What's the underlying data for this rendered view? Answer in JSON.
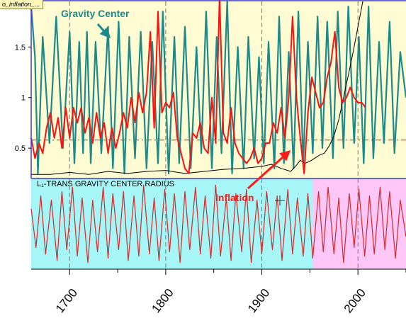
{
  "file_tab": "o_inflation_...",
  "colors": {
    "upper_bg": "#fffcd4",
    "lower_bg_left": "#a6f5f7",
    "lower_bg_right": "#ffc7f7",
    "gravity": "#1b8a8a",
    "inflation": "#ff1010",
    "radius_line": "#d22a2a",
    "black_curve": "#000000",
    "grid": "#7a7a7a",
    "mean_line": "#cc2222",
    "label_teal": "#1b8a8a",
    "label_red": "#ff1a1a"
  },
  "chart_data": [
    {
      "type": "line",
      "panel": "upper",
      "xlim": [
        1660,
        2050
      ],
      "ylim": [
        0.2,
        1.95
      ],
      "y_ticks": [
        "0.5",
        "1",
        "1.5"
      ],
      "y_tick_values": [
        0.5,
        1,
        1.5
      ],
      "grid_x": [
        1700,
        1800,
        1900,
        2000
      ],
      "mean_line_y": 0.58,
      "labels": {
        "gravity_center": "Gravity Center",
        "inflation": "Inflation"
      },
      "series": [
        {
          "name": "Gravity Center",
          "x": [
            1660,
            1664,
            1667,
            1672,
            1679,
            1686,
            1693,
            1700,
            1705,
            1710,
            1714,
            1718,
            1722,
            1727,
            1733,
            1740,
            1745,
            1751,
            1757,
            1762,
            1768,
            1774,
            1780,
            1786,
            1792,
            1797,
            1803,
            1809,
            1814,
            1820,
            1826,
            1832,
            1837,
            1842,
            1848,
            1853,
            1858,
            1864,
            1869,
            1875,
            1881,
            1886,
            1892,
            1897,
            1902,
            1907,
            1913,
            1918,
            1923,
            1928,
            1933,
            1938,
            1943,
            1948,
            1953,
            1958,
            1963,
            1968,
            1974,
            1979,
            1985,
            1990,
            1996,
            2001,
            2006,
            2011,
            2016,
            2022,
            2027,
            2033,
            2038,
            2044,
            2050
          ],
          "y": [
            1.9,
            1.4,
            0.25,
            1.6,
            0.55,
            1.8,
            0.5,
            1.65,
            0.35,
            1.55,
            0.45,
            1.65,
            0.35,
            1.55,
            0.45,
            1.7,
            0.3,
            1.75,
            0.25,
            1.6,
            0.4,
            1.65,
            0.3,
            1.55,
            0.35,
            1.85,
            0.25,
            1.6,
            0.35,
            1.7,
            0.3,
            1.5,
            0.45,
            1.85,
            0.3,
            1.6,
            0.45,
            1.95,
            0.25,
            1.5,
            0.3,
            1.6,
            0.4,
            1.4,
            0.35,
            1.55,
            0.3,
            1.8,
            0.35,
            1.45,
            0.3,
            1.85,
            0.35,
            1.55,
            0.45,
            1.8,
            0.5,
            1.75,
            0.4,
            1.85,
            0.5,
            1.9,
            0.55,
            1.6,
            0.35,
            1.9,
            0.4,
            1.55,
            0.55,
            1.75,
            0.45,
            1.45,
            1.0
          ]
        },
        {
          "name": "Inflation",
          "x": [
            1660,
            1664,
            1668,
            1672,
            1676,
            1680,
            1684,
            1688,
            1692,
            1696,
            1700,
            1704,
            1708,
            1712,
            1716,
            1720,
            1724,
            1728,
            1732,
            1736,
            1740,
            1744,
            1748,
            1752,
            1756,
            1760,
            1764,
            1768,
            1772,
            1776,
            1780,
            1784,
            1788,
            1792,
            1796,
            1800,
            1804,
            1808,
            1812,
            1816,
            1820,
            1824,
            1828,
            1832,
            1836,
            1840,
            1844,
            1848,
            1852,
            1856,
            1860,
            1864,
            1868,
            1872,
            1876,
            1880,
            1884,
            1888,
            1892,
            1896,
            1900,
            1904,
            1908,
            1912,
            1916,
            1920,
            1924,
            1928,
            1932,
            1936,
            1940,
            1944,
            1948,
            1952,
            1956,
            1960,
            1964,
            1968,
            1972,
            1976,
            1980,
            1984,
            1988,
            1992,
            1996,
            2000,
            2004,
            2008
          ],
          "y": [
            0.6,
            0.4,
            0.55,
            0.45,
            0.7,
            0.85,
            0.6,
            0.8,
            0.5,
            0.9,
            0.6,
            0.9,
            0.75,
            0.9,
            0.65,
            0.8,
            0.55,
            0.85,
            0.6,
            0.75,
            0.45,
            0.7,
            0.5,
            0.65,
            0.85,
            0.7,
            1.0,
            0.75,
            1.05,
            0.85,
            1.05,
            1.65,
            0.7,
            1.85,
            0.85,
            0.95,
            0.9,
            1.05,
            0.6,
            0.45,
            0.3,
            0.25,
            0.65,
            0.6,
            0.75,
            0.5,
            0.45,
            1.0,
            0.55,
            2.0,
            0.65,
            0.55,
            0.9,
            0.55,
            0.45,
            0.4,
            0.35,
            0.4,
            0.5,
            0.35,
            0.4,
            0.55,
            0.55,
            0.75,
            0.65,
            0.9,
            0.6,
            1.0,
            1.8,
            1.0,
            0.6,
            0.25,
            0.85,
            1.2,
            1.05,
            0.9,
            0.95,
            1.2,
            1.35,
            1.65,
            1.1,
            0.95,
            1.0,
            1.1,
            1.0,
            0.95,
            0.95,
            0.9
          ]
        },
        {
          "name": "",
          "x": [
            1660,
            1680,
            1700,
            1720,
            1740,
            1760,
            1780,
            1800,
            1820,
            1840,
            1860,
            1880,
            1900,
            1910,
            1920,
            1930,
            1935,
            1940,
            1945,
            1950,
            1955,
            1960,
            1965,
            1970,
            1975,
            1980,
            1985,
            1990,
            1995,
            2000,
            2005
          ],
          "y": [
            0.24,
            0.24,
            0.26,
            0.24,
            0.27,
            0.25,
            0.27,
            0.28,
            0.25,
            0.27,
            0.29,
            0.3,
            0.32,
            0.34,
            0.3,
            0.27,
            0.32,
            0.38,
            0.35,
            0.37,
            0.4,
            0.43,
            0.45,
            0.52,
            0.62,
            0.78,
            1.0,
            1.22,
            1.45,
            1.7,
            1.95
          ]
        }
      ]
    },
    {
      "type": "line",
      "panel": "lower",
      "title": "L₁-TRANS GRAVITY CENTER RADIUS",
      "xlim": [
        1660,
        2050
      ],
      "x_ticks": [
        "1700",
        "1800",
        "1900",
        "2000"
      ],
      "x_tick_values": [
        1700,
        1800,
        1900,
        2000
      ],
      "shade_boundary_x": 1953,
      "series": [
        {
          "name": "",
          "x": [
            1660,
            1665,
            1670,
            1675,
            1681,
            1687,
            1692,
            1697,
            1703,
            1708,
            1713,
            1719,
            1724,
            1729,
            1735,
            1740,
            1745,
            1751,
            1756,
            1761,
            1767,
            1772,
            1777,
            1783,
            1788,
            1793,
            1799,
            1804,
            1809,
            1815,
            1820,
            1825,
            1831,
            1836,
            1841,
            1847,
            1852,
            1857,
            1863,
            1868,
            1873,
            1879,
            1884,
            1889,
            1895,
            1900,
            1905,
            1911,
            1916,
            1921,
            1927,
            1932,
            1937,
            1943,
            1948,
            1953,
            1959,
            1964,
            1969,
            1975,
            1980,
            1985,
            1991,
            1996,
            2001,
            2007,
            2012,
            2017,
            2023,
            2028,
            2033,
            2039,
            2044,
            2050
          ],
          "y": [
            0.35,
            -0.55,
            0.65,
            -0.7,
            0.55,
            -0.85,
            0.75,
            -0.6,
            0.85,
            -0.75,
            0.6,
            -0.9,
            0.55,
            -0.65,
            0.85,
            -0.8,
            0.7,
            -0.6,
            0.75,
            -0.85,
            0.65,
            -0.75,
            0.9,
            -0.7,
            0.6,
            -0.85,
            0.8,
            -0.65,
            0.7,
            -0.9,
            0.75,
            -0.6,
            0.85,
            -0.7,
            0.65,
            -0.8,
            0.9,
            -0.75,
            0.6,
            -0.85,
            0.7,
            -0.65,
            0.8,
            -0.9,
            0.55,
            -0.7,
            0.75,
            -0.6,
            0.65,
            -0.85,
            0.8,
            -0.7,
            0.6,
            -0.75,
            0.7,
            -0.8,
            0.75,
            -0.65,
            0.85,
            -0.7,
            0.6,
            -0.9,
            0.7,
            -0.55,
            0.8,
            -0.75,
            0.65,
            -0.7,
            0.85,
            -0.6,
            0.75,
            -0.8,
            0.55,
            -0.3
          ]
        }
      ]
    }
  ]
}
